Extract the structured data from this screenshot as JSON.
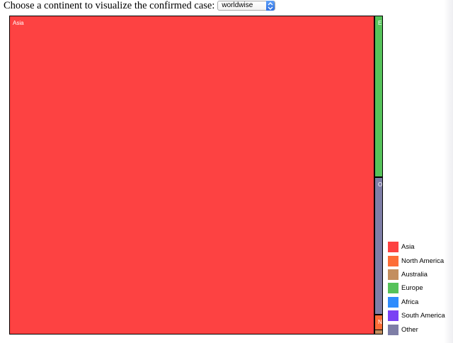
{
  "header": {
    "prompt": "Choose a continent to visualize the confirmed case:",
    "select": {
      "value": "worldwise"
    }
  },
  "treemap": {
    "tiles": [
      {
        "name": "Asia",
        "label": "Asia",
        "color": "#fd4242"
      },
      {
        "name": "Europe",
        "label": "E",
        "color": "#56c25a"
      },
      {
        "name": "Other",
        "label": "O",
        "color": "#7e7ea6"
      },
      {
        "name": "North America",
        "label": "N",
        "color": "#fd6d37"
      },
      {
        "name": "Australia",
        "label": "",
        "color": "#c38e5f"
      }
    ]
  },
  "legend": {
    "items": [
      {
        "label": "Asia",
        "color": "#fd4242"
      },
      {
        "label": "North America",
        "color": "#fd6d37"
      },
      {
        "label": "Australia",
        "color": "#c38e5f"
      },
      {
        "label": "Europe",
        "color": "#56c25a"
      },
      {
        "label": "Africa",
        "color": "#2f8cfd"
      },
      {
        "label": "South America",
        "color": "#7a42f4"
      },
      {
        "label": "Other",
        "color": "#7e7ea6"
      }
    ]
  }
}
